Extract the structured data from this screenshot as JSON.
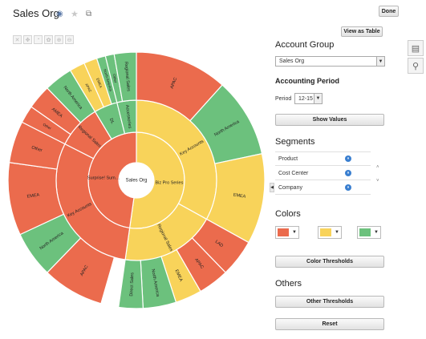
{
  "header": {
    "title": "Sales Org",
    "done_label": "Done",
    "view_table_label": "View as Table"
  },
  "colors": {
    "red": "#eb6b4d",
    "yellow": "#f8d35a",
    "green": "#6cc17d"
  },
  "sunburst": {
    "rings": [
      [
        {
          "start": 0,
          "end": 360,
          "color": "white",
          "label": "Sales Org"
        }
      ],
      [
        {
          "start": 0,
          "end": 188,
          "color": "yellow",
          "label": "Biz Pro Series"
        },
        {
          "start": 188,
          "end": 360,
          "color": "red",
          "label": "Surprise! Sum…"
        }
      ],
      [
        {
          "start": 0,
          "end": 119,
          "color": "yellow",
          "label": "Key Accounts"
        },
        {
          "start": 119,
          "end": 188,
          "color": "yellow",
          "label": "Regional Sales"
        },
        {
          "start": 188,
          "end": 297,
          "color": "red",
          "label": "Key Accounts"
        },
        {
          "start": 297,
          "end": 329,
          "color": "red",
          "label": "Regional Sales"
        },
        {
          "start": 329,
          "end": 346,
          "color": "green",
          "label": "DL"
        },
        {
          "start": 346,
          "end": 360,
          "color": "green",
          "label": "Accessories"
        }
      ],
      [
        {
          "start": 0,
          "end": 42,
          "color": "red",
          "label": "APAC"
        },
        {
          "start": 42,
          "end": 78,
          "color": "green",
          "label": "North America"
        },
        {
          "start": 78,
          "end": 119,
          "color": "yellow",
          "label": "EMEA"
        },
        {
          "start": 119,
          "end": 136,
          "color": "red",
          "label": "LAD"
        },
        {
          "start": 136,
          "end": 150,
          "color": "red",
          "label": "APAC"
        },
        {
          "start": 150,
          "end": 162,
          "color": "yellow",
          "label": "EMEA"
        },
        {
          "start": 162,
          "end": 177,
          "color": "green",
          "label": "North America"
        },
        {
          "start": 177,
          "end": 188,
          "color": "green",
          "label": "Direct Sales"
        },
        {
          "start": 196,
          "end": 224,
          "color": "red",
          "label": "APAC"
        },
        {
          "start": 224,
          "end": 245,
          "color": "green",
          "label": "North America"
        },
        {
          "start": 245,
          "end": 278,
          "color": "red",
          "label": "EMEA"
        },
        {
          "start": 278,
          "end": 297,
          "color": "red",
          "label": "Other"
        },
        {
          "start": 297,
          "end": 305,
          "color": "red",
          "label": "Other"
        },
        {
          "start": 305,
          "end": 316,
          "color": "red",
          "label": "AMEA"
        },
        {
          "start": 316,
          "end": 329,
          "color": "green",
          "label": "North America"
        },
        {
          "start": 329,
          "end": 336,
          "color": "yellow",
          "label": "APAC"
        },
        {
          "start": 336,
          "end": 342,
          "color": "yellow",
          "label": "EMEA"
        },
        {
          "start": 342,
          "end": 346,
          "color": "green",
          "label": "North America"
        },
        {
          "start": 346,
          "end": 350,
          "color": "green",
          "label": "Other"
        },
        {
          "start": 350,
          "end": 360,
          "color": "green",
          "label": "Regional Sales"
        }
      ]
    ]
  },
  "panel": {
    "account_group": {
      "heading": "Account Group",
      "value": "Sales Org"
    },
    "accounting_period": {
      "heading": "Accounting Period",
      "period_label": "Period",
      "period_value": "12-15",
      "show_values_label": "Show Values"
    },
    "segments": {
      "heading": "Segments",
      "items": [
        "Product",
        "Cost Center",
        "Company"
      ]
    },
    "colors": {
      "heading": "Colors",
      "thresholds_label": "Color Thresholds"
    },
    "others": {
      "heading": "Others",
      "thresholds_label": "Other Thresholds",
      "reset_label": "Reset"
    }
  }
}
